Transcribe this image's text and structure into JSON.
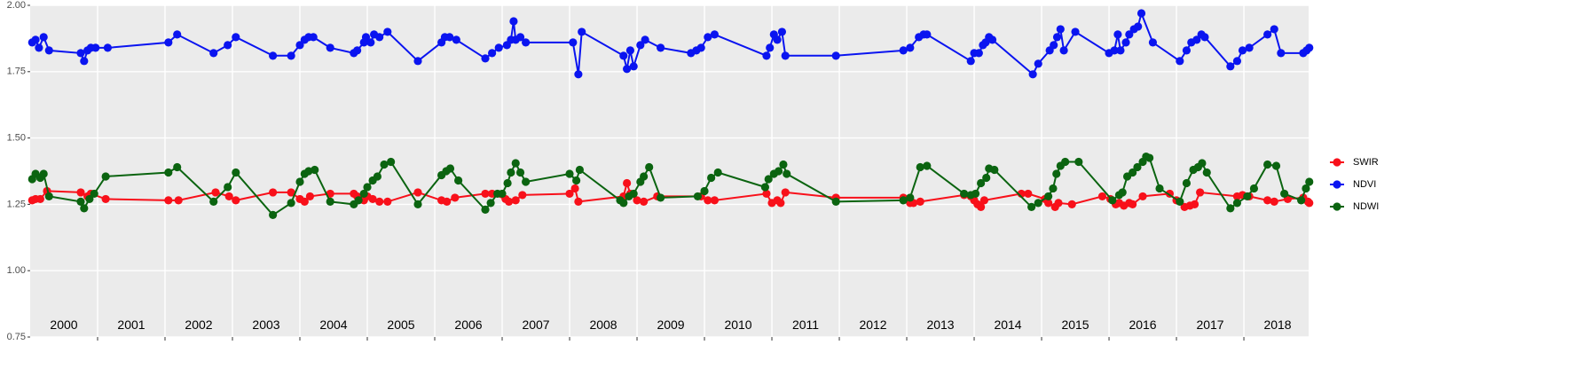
{
  "chart_data": {
    "type": "line",
    "xlim": [
      2000,
      2018.96
    ],
    "ylim": [
      0.75,
      2.0
    ],
    "yticks": [
      {
        "value": 0.75,
        "label": "0.75"
      },
      {
        "value": 1.0,
        "label": "1.00"
      },
      {
        "value": 1.25,
        "label": "1.25"
      },
      {
        "value": 1.5,
        "label": "1.50"
      },
      {
        "value": 1.75,
        "label": "1.75"
      },
      {
        "value": 2.0,
        "label": "2.00"
      }
    ],
    "xticks": [
      2001,
      2002,
      2003,
      2004,
      2005,
      2006,
      2007,
      2008,
      2009,
      2010,
      2011,
      2012,
      2013,
      2014,
      2015,
      2016,
      2017,
      2018
    ],
    "grid": true,
    "legend": "right",
    "annotations": [
      {
        "x": 2000.5,
        "y": 0.793,
        "text": "2000"
      },
      {
        "x": 2001.5,
        "y": 0.793,
        "text": "2001"
      },
      {
        "x": 2002.5,
        "y": 0.793,
        "text": "2002"
      },
      {
        "x": 2003.5,
        "y": 0.793,
        "text": "2003"
      },
      {
        "x": 2004.5,
        "y": 0.793,
        "text": "2004"
      },
      {
        "x": 2005.5,
        "y": 0.793,
        "text": "2005"
      },
      {
        "x": 2006.5,
        "y": 0.793,
        "text": "2006"
      },
      {
        "x": 2007.5,
        "y": 0.793,
        "text": "2007"
      },
      {
        "x": 2008.5,
        "y": 0.793,
        "text": "2008"
      },
      {
        "x": 2009.5,
        "y": 0.793,
        "text": "2009"
      },
      {
        "x": 2010.5,
        "y": 0.793,
        "text": "2010"
      },
      {
        "x": 2011.5,
        "y": 0.793,
        "text": "2011"
      },
      {
        "x": 2012.5,
        "y": 0.793,
        "text": "2012"
      },
      {
        "x": 2013.5,
        "y": 0.793,
        "text": "2013"
      },
      {
        "x": 2014.5,
        "y": 0.793,
        "text": "2014"
      },
      {
        "x": 2015.5,
        "y": 0.793,
        "text": "2015"
      },
      {
        "x": 2016.5,
        "y": 0.793,
        "text": "2016"
      },
      {
        "x": 2017.5,
        "y": 0.793,
        "text": "2017"
      },
      {
        "x": 2018.5,
        "y": 0.793,
        "text": "2018"
      }
    ],
    "series": [
      {
        "name": "SWIR",
        "color": "#f8101a",
        "x": [
          2000.03,
          2000.08,
          2000.15,
          2000.25,
          2000.75,
          2000.85,
          2000.9,
          2001.12,
          2002.05,
          2002.2,
          2002.75,
          2002.95,
          2003.05,
          2003.6,
          2003.87,
          2004.0,
          2004.07,
          2004.15,
          2004.45,
          2004.8,
          2004.85,
          2004.95,
          2005.0,
          2005.08,
          2005.18,
          2005.3,
          2005.75,
          2006.1,
          2006.18,
          2006.3,
          2006.75,
          2006.85,
          2007.05,
          2007.1,
          2007.2,
          2007.3,
          2008.0,
          2008.08,
          2008.13,
          2008.8,
          2008.85,
          2008.9,
          2009.0,
          2009.1,
          2009.3,
          2009.95,
          2010.05,
          2010.15,
          2010.92,
          2011.0,
          2011.08,
          2011.13,
          2011.2,
          2011.95,
          2012.95,
          2013.05,
          2013.1,
          2013.2,
          2013.85,
          2013.95,
          2014.0,
          2014.05,
          2014.1,
          2014.15,
          2014.7,
          2014.8,
          2015.05,
          2015.1,
          2015.2,
          2015.25,
          2015.45,
          2015.9,
          2016.02,
          2016.1,
          2016.15,
          2016.22,
          2016.3,
          2016.35,
          2016.5,
          2016.9,
          2017.0,
          2017.12,
          2017.2,
          2017.27,
          2017.35,
          2017.9,
          2017.98,
          2018.08,
          2018.35,
          2018.45,
          2018.65,
          2018.88,
          2018.95,
          2018.97
        ],
        "values": [
          1.265,
          1.27,
          1.27,
          1.3,
          1.295,
          1.28,
          1.29,
          1.27,
          1.265,
          1.265,
          1.295,
          1.28,
          1.265,
          1.295,
          1.295,
          1.27,
          1.26,
          1.28,
          1.29,
          1.29,
          1.28,
          1.265,
          1.28,
          1.27,
          1.26,
          1.26,
          1.295,
          1.265,
          1.26,
          1.275,
          1.29,
          1.29,
          1.27,
          1.26,
          1.265,
          1.285,
          1.29,
          1.31,
          1.26,
          1.28,
          1.33,
          1.29,
          1.265,
          1.26,
          1.28,
          1.28,
          1.265,
          1.265,
          1.29,
          1.255,
          1.265,
          1.255,
          1.295,
          1.275,
          1.275,
          1.255,
          1.255,
          1.26,
          1.285,
          1.28,
          1.265,
          1.25,
          1.24,
          1.265,
          1.29,
          1.29,
          1.27,
          1.255,
          1.24,
          1.255,
          1.25,
          1.28,
          1.27,
          1.25,
          1.255,
          1.245,
          1.255,
          1.25,
          1.28,
          1.29,
          1.265,
          1.24,
          1.245,
          1.25,
          1.295,
          1.28,
          1.285,
          1.28,
          1.265,
          1.26,
          1.27,
          1.275,
          1.26,
          1.255
        ]
      },
      {
        "name": "NDVI",
        "color": "#0a14f0",
        "x": [
          2000.03,
          2000.08,
          2000.13,
          2000.2,
          2000.28,
          2000.75,
          2000.8,
          2000.85,
          2000.9,
          2000.97,
          2001.15,
          2002.05,
          2002.18,
          2002.72,
          2002.93,
          2003.05,
          2003.6,
          2003.87,
          2004.0,
          2004.07,
          2004.13,
          2004.2,
          2004.45,
          2004.8,
          2004.85,
          2004.95,
          2004.98,
          2005.05,
          2005.1,
          2005.18,
          2005.3,
          2005.75,
          2006.1,
          2006.15,
          2006.22,
          2006.32,
          2006.75,
          2006.85,
          2006.95,
          2007.07,
          2007.13,
          2007.17,
          2007.2,
          2007.27,
          2007.35,
          2008.05,
          2008.13,
          2008.18,
          2008.8,
          2008.85,
          2008.9,
          2008.95,
          2009.05,
          2009.12,
          2009.35,
          2009.8,
          2009.88,
          2009.95,
          2010.05,
          2010.15,
          2010.92,
          2010.97,
          2011.03,
          2011.08,
          2011.15,
          2011.2,
          2011.95,
          2012.95,
          2013.05,
          2013.18,
          2013.25,
          2013.3,
          2013.95,
          2014.0,
          2014.07,
          2014.13,
          2014.17,
          2014.22,
          2014.27,
          2014.87,
          2014.95,
          2015.12,
          2015.18,
          2015.23,
          2015.28,
          2015.33,
          2015.5,
          2016.0,
          2016.08,
          2016.13,
          2016.17,
          2016.25,
          2016.3,
          2016.37,
          2016.43,
          2016.48,
          2016.65,
          2017.05,
          2017.15,
          2017.22,
          2017.3,
          2017.37,
          2017.42,
          2017.8,
          2017.9,
          2017.98,
          2018.08,
          2018.35,
          2018.45,
          2018.55,
          2018.88,
          2018.93,
          2018.97
        ],
        "values": [
          1.86,
          1.87,
          1.84,
          1.88,
          1.83,
          1.82,
          1.79,
          1.83,
          1.84,
          1.84,
          1.84,
          1.86,
          1.89,
          1.82,
          1.85,
          1.88,
          1.81,
          1.81,
          1.85,
          1.87,
          1.88,
          1.88,
          1.84,
          1.82,
          1.83,
          1.86,
          1.88,
          1.86,
          1.89,
          1.88,
          1.9,
          1.79,
          1.86,
          1.88,
          1.88,
          1.87,
          1.8,
          1.82,
          1.84,
          1.85,
          1.87,
          1.94,
          1.87,
          1.88,
          1.86,
          1.86,
          1.74,
          1.9,
          1.81,
          1.76,
          1.83,
          1.77,
          1.85,
          1.87,
          1.84,
          1.82,
          1.83,
          1.84,
          1.88,
          1.89,
          1.81,
          1.84,
          1.89,
          1.87,
          1.9,
          1.81,
          1.81,
          1.83,
          1.84,
          1.88,
          1.89,
          1.89,
          1.79,
          1.82,
          1.82,
          1.85,
          1.86,
          1.88,
          1.87,
          1.74,
          1.78,
          1.83,
          1.85,
          1.88,
          1.91,
          1.83,
          1.9,
          1.82,
          1.83,
          1.89,
          1.83,
          1.86,
          1.89,
          1.91,
          1.92,
          1.97,
          1.86,
          1.79,
          1.83,
          1.86,
          1.87,
          1.89,
          1.88,
          1.77,
          1.79,
          1.83,
          1.84,
          1.89,
          1.91,
          1.82,
          1.82,
          1.83,
          1.84
        ]
      },
      {
        "name": "NDWI",
        "color": "#0b6410",
        "x": [
          2000.03,
          2000.08,
          2000.15,
          2000.2,
          2000.28,
          2000.75,
          2000.8,
          2000.88,
          2000.95,
          2001.12,
          2002.05,
          2002.18,
          2002.72,
          2002.93,
          2003.05,
          2003.6,
          2003.87,
          2004.0,
          2004.07,
          2004.13,
          2004.22,
          2004.45,
          2004.8,
          2004.87,
          2004.95,
          2005.0,
          2005.08,
          2005.15,
          2005.25,
          2005.35,
          2005.75,
          2006.1,
          2006.17,
          2006.23,
          2006.35,
          2006.75,
          2006.83,
          2006.93,
          2007.0,
          2007.08,
          2007.13,
          2007.2,
          2007.27,
          2007.35,
          2008.0,
          2008.1,
          2008.15,
          2008.75,
          2008.8,
          2008.88,
          2008.95,
          2009.05,
          2009.1,
          2009.18,
          2009.35,
          2009.9,
          2010.0,
          2010.1,
          2010.2,
          2010.9,
          2010.95,
          2011.03,
          2011.1,
          2011.17,
          2011.22,
          2011.95,
          2012.95,
          2013.05,
          2013.2,
          2013.3,
          2013.85,
          2013.95,
          2014.02,
          2014.1,
          2014.18,
          2014.22,
          2014.3,
          2014.85,
          2014.95,
          2015.1,
          2015.17,
          2015.22,
          2015.28,
          2015.35,
          2015.55,
          2016.05,
          2016.15,
          2016.2,
          2016.27,
          2016.35,
          2016.42,
          2016.5,
          2016.55,
          2016.6,
          2016.75,
          2017.05,
          2017.15,
          2017.25,
          2017.32,
          2017.38,
          2017.45,
          2017.8,
          2017.9,
          2018.05,
          2018.15,
          2018.35,
          2018.48,
          2018.6,
          2018.85,
          2018.92,
          2018.97
        ],
        "values": [
          1.345,
          1.365,
          1.35,
          1.365,
          1.28,
          1.26,
          1.235,
          1.27,
          1.29,
          1.355,
          1.37,
          1.39,
          1.26,
          1.315,
          1.37,
          1.21,
          1.255,
          1.335,
          1.365,
          1.375,
          1.38,
          1.26,
          1.25,
          1.265,
          1.29,
          1.315,
          1.34,
          1.355,
          1.4,
          1.41,
          1.25,
          1.36,
          1.375,
          1.385,
          1.34,
          1.23,
          1.255,
          1.29,
          1.29,
          1.33,
          1.37,
          1.405,
          1.37,
          1.335,
          1.365,
          1.34,
          1.38,
          1.265,
          1.255,
          1.28,
          1.29,
          1.335,
          1.355,
          1.39,
          1.275,
          1.28,
          1.3,
          1.35,
          1.37,
          1.315,
          1.345,
          1.365,
          1.375,
          1.4,
          1.365,
          1.26,
          1.265,
          1.275,
          1.39,
          1.395,
          1.29,
          1.285,
          1.29,
          1.33,
          1.35,
          1.385,
          1.38,
          1.24,
          1.255,
          1.28,
          1.31,
          1.365,
          1.395,
          1.41,
          1.41,
          1.265,
          1.285,
          1.295,
          1.355,
          1.37,
          1.39,
          1.41,
          1.43,
          1.425,
          1.31,
          1.26,
          1.33,
          1.38,
          1.39,
          1.405,
          1.37,
          1.235,
          1.255,
          1.28,
          1.31,
          1.4,
          1.395,
          1.29,
          1.265,
          1.31,
          1.335
        ]
      }
    ]
  }
}
